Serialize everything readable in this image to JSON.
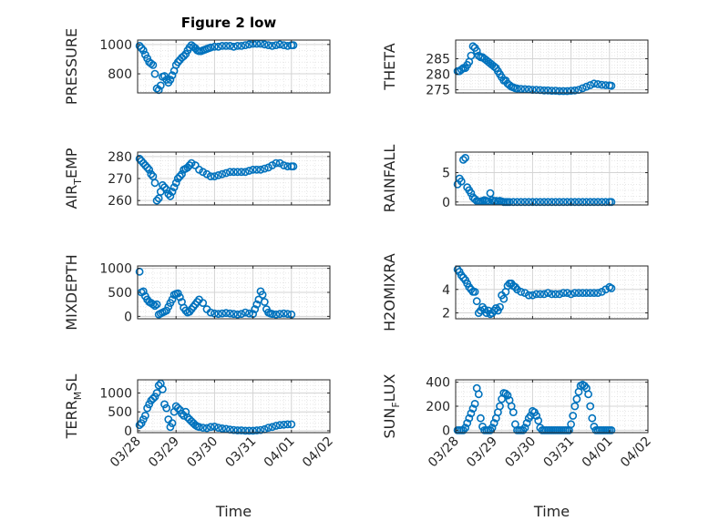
{
  "figure": {
    "title": "Figure 2 low"
  },
  "chart_data": [
    {
      "type": "scatter",
      "ylabel": "PRESSURE",
      "ylim": [
        670,
        1030
      ],
      "yticks": [
        800,
        1000
      ],
      "xlim": [
        0,
        5
      ],
      "xticklabels": [],
      "title": "Figure 2 low",
      "color": "#0072BD",
      "series": [
        {
          "x": [
            0.05,
            0.1,
            0.15,
            0.2,
            0.25,
            0.3,
            0.35,
            0.4,
            0.45,
            0.5,
            0.55,
            0.6,
            0.65,
            0.7,
            0.75,
            0.8,
            0.85,
            0.9,
            0.95,
            1.0,
            1.05,
            1.1,
            1.15,
            1.2,
            1.25,
            1.3,
            1.35,
            1.4,
            1.45,
            1.5,
            1.55,
            1.6,
            1.65,
            1.7,
            1.75,
            1.8,
            1.85,
            1.9,
            2.0,
            2.1,
            2.2,
            2.3,
            2.4,
            2.5,
            2.6,
            2.7,
            2.8,
            2.9,
            3.0,
            3.1,
            3.2,
            3.3,
            3.4,
            3.5,
            3.6,
            3.7,
            3.8,
            3.9,
            4.0,
            4.05
          ],
          "y": [
            990,
            975,
            960,
            930,
            905,
            880,
            870,
            860,
            800,
            700,
            690,
            720,
            780,
            785,
            760,
            740,
            760,
            790,
            820,
            860,
            880,
            895,
            910,
            920,
            935,
            960,
            980,
            995,
            985,
            975,
            960,
            955,
            955,
            960,
            965,
            970,
            975,
            980,
            985,
            985,
            990,
            990,
            990,
            985,
            990,
            990,
            995,
            1000,
            1005,
            1005,
            1005,
            1000,
            995,
            990,
            995,
            1000,
            995,
            990,
            995,
            995
          ]
        }
      ]
    },
    {
      "type": "scatter",
      "ylabel": "THETA",
      "ylim": [
        274,
        291
      ],
      "yticks": [
        275,
        280,
        285
      ],
      "xlim": [
        0,
        5
      ],
      "xticklabels": [],
      "color": "#0072BD",
      "series": [
        {
          "x": [
            0.05,
            0.1,
            0.15,
            0.2,
            0.25,
            0.3,
            0.35,
            0.4,
            0.45,
            0.5,
            0.55,
            0.6,
            0.65,
            0.7,
            0.75,
            0.8,
            0.85,
            0.9,
            0.95,
            1.0,
            1.05,
            1.1,
            1.15,
            1.2,
            1.25,
            1.3,
            1.35,
            1.4,
            1.45,
            1.5,
            1.55,
            1.6,
            1.7,
            1.8,
            1.9,
            2.0,
            2.1,
            2.2,
            2.3,
            2.4,
            2.5,
            2.6,
            2.7,
            2.8,
            2.9,
            3.0,
            3.1,
            3.2,
            3.3,
            3.4,
            3.5,
            3.6,
            3.7,
            3.8,
            3.9,
            4.0,
            4.05
          ],
          "y": [
            281,
            281,
            281.5,
            282,
            282,
            283,
            284,
            286,
            289,
            288.5,
            287.5,
            286,
            285.5,
            285.5,
            285,
            284.5,
            284,
            283.5,
            283,
            282.5,
            282,
            281,
            280,
            279,
            278,
            278,
            277,
            276.5,
            276,
            275.8,
            275.5,
            275.4,
            275.3,
            275.2,
            275.1,
            275,
            275,
            274.9,
            274.8,
            274.8,
            274.7,
            274.7,
            274.6,
            274.6,
            274.6,
            274.7,
            274.8,
            275,
            275.5,
            276,
            276.5,
            277,
            276.8,
            276.6,
            276.5,
            276.4,
            276.3
          ]
        }
      ]
    },
    {
      "type": "scatter",
      "ylabel": "AIR_TEMP",
      "ylim": [
        258,
        282
      ],
      "yticks": [
        260,
        270,
        280
      ],
      "xlim": [
        0,
        5
      ],
      "xticklabels": [],
      "color": "#0072BD",
      "series": [
        {
          "x": [
            0.05,
            0.1,
            0.15,
            0.2,
            0.25,
            0.3,
            0.35,
            0.4,
            0.45,
            0.5,
            0.55,
            0.6,
            0.65,
            0.7,
            0.75,
            0.8,
            0.85,
            0.9,
            0.95,
            1.0,
            1.05,
            1.1,
            1.15,
            1.2,
            1.25,
            1.3,
            1.35,
            1.4,
            1.5,
            1.6,
            1.7,
            1.8,
            1.9,
            2.0,
            2.1,
            2.2,
            2.3,
            2.4,
            2.5,
            2.6,
            2.7,
            2.8,
            2.9,
            3.0,
            3.1,
            3.2,
            3.3,
            3.4,
            3.5,
            3.6,
            3.7,
            3.8,
            3.9,
            4.0,
            4.05
          ],
          "y": [
            279,
            278,
            277,
            276,
            275,
            274,
            272,
            271,
            268,
            260,
            261,
            264,
            267,
            266,
            265,
            263,
            262,
            264,
            266,
            268,
            270,
            271,
            272,
            274,
            274.5,
            275,
            276,
            277,
            276,
            274,
            273,
            272,
            271,
            271,
            271.5,
            272,
            272.5,
            273,
            273,
            273,
            273,
            273,
            273.5,
            274,
            274,
            274,
            274.5,
            275,
            276,
            277,
            277,
            276,
            275.5,
            275.5,
            275.5
          ]
        }
      ]
    },
    {
      "type": "scatter",
      "ylabel": "RAINFALL",
      "ylim": [
        -0.5,
        8.5
      ],
      "yticks": [
        0,
        5
      ],
      "xlim": [
        0,
        5
      ],
      "xticklabels": [],
      "color": "#0072BD",
      "series": [
        {
          "x": [
            0.05,
            0.1,
            0.15,
            0.2,
            0.25,
            0.3,
            0.35,
            0.4,
            0.45,
            0.5,
            0.55,
            0.6,
            0.65,
            0.7,
            0.75,
            0.8,
            0.85,
            0.9,
            0.95,
            1.0,
            1.05,
            1.1,
            1.15,
            1.2,
            1.25,
            1.3,
            1.35,
            1.4,
            1.5,
            1.6,
            1.7,
            1.8,
            1.9,
            2.0,
            2.1,
            2.2,
            2.3,
            2.4,
            2.5,
            2.6,
            2.7,
            2.8,
            2.9,
            3.0,
            3.1,
            3.2,
            3.3,
            3.4,
            3.5,
            3.6,
            3.7,
            3.8,
            3.9,
            4.0,
            4.05
          ],
          "y": [
            3,
            4,
            3.5,
            7.2,
            7.5,
            2.5,
            2,
            1.5,
            0.8,
            0.5,
            0.2,
            0.1,
            0.1,
            0.2,
            0.3,
            0.2,
            0.1,
            1.5,
            0.3,
            0.1,
            0.2,
            0.1,
            0.2,
            0.1,
            0,
            0,
            0,
            0,
            0,
            0,
            0,
            0,
            0,
            0,
            0,
            0,
            0,
            0,
            0,
            0,
            0,
            0,
            0,
            0,
            0,
            0,
            0,
            0,
            0,
            0,
            0,
            0,
            0,
            0,
            0
          ]
        }
      ]
    },
    {
      "type": "scatter",
      "ylabel": "MIXDEPTH",
      "ylim": [
        -50,
        1050
      ],
      "yticks": [
        0,
        500,
        1000
      ],
      "xlim": [
        0,
        5
      ],
      "xticklabels": [],
      "color": "#0072BD",
      "series": [
        {
          "x": [
            0.05,
            0.1,
            0.15,
            0.2,
            0.25,
            0.3,
            0.35,
            0.4,
            0.45,
            0.5,
            0.55,
            0.6,
            0.65,
            0.7,
            0.75,
            0.8,
            0.85,
            0.9,
            0.95,
            1.0,
            1.05,
            1.1,
            1.15,
            1.2,
            1.25,
            1.3,
            1.35,
            1.4,
            1.45,
            1.5,
            1.55,
            1.6,
            1.7,
            1.8,
            1.9,
            2.0,
            2.1,
            2.2,
            2.3,
            2.4,
            2.5,
            2.6,
            2.7,
            2.8,
            2.9,
            3.0,
            3.05,
            3.1,
            3.15,
            3.2,
            3.25,
            3.3,
            3.35,
            3.4,
            3.45,
            3.5,
            3.6,
            3.7,
            3.8,
            3.9,
            4.0
          ],
          "y": [
            930,
            500,
            520,
            420,
            350,
            300,
            280,
            250,
            220,
            250,
            40,
            60,
            80,
            100,
            120,
            200,
            280,
            350,
            450,
            470,
            480,
            400,
            300,
            180,
            120,
            80,
            100,
            150,
            200,
            250,
            300,
            350,
            280,
            150,
            80,
            60,
            50,
            60,
            70,
            60,
            50,
            40,
            50,
            80,
            60,
            50,
            150,
            250,
            350,
            520,
            450,
            300,
            150,
            80,
            60,
            50,
            40,
            50,
            60,
            50,
            40
          ]
        }
      ]
    },
    {
      "type": "scatter",
      "ylabel": "H2OMIXRA",
      "ylim": [
        1.5,
        6
      ],
      "yticks": [
        2,
        4
      ],
      "xlim": [
        0,
        5
      ],
      "xticklabels": [],
      "color": "#0072BD",
      "series": [
        {
          "x": [
            0.05,
            0.1,
            0.15,
            0.2,
            0.25,
            0.3,
            0.35,
            0.4,
            0.45,
            0.5,
            0.55,
            0.6,
            0.65,
            0.7,
            0.75,
            0.8,
            0.85,
            0.9,
            0.95,
            1.0,
            1.05,
            1.1,
            1.15,
            1.2,
            1.25,
            1.3,
            1.35,
            1.4,
            1.45,
            1.5,
            1.55,
            1.6,
            1.7,
            1.8,
            1.9,
            2.0,
            2.1,
            2.2,
            2.3,
            2.4,
            2.5,
            2.6,
            2.7,
            2.8,
            2.9,
            3.0,
            3.1,
            3.2,
            3.3,
            3.4,
            3.5,
            3.6,
            3.7,
            3.8,
            3.9,
            4.0,
            4.05
          ],
          "y": [
            5.7,
            5.5,
            5.2,
            5,
            4.8,
            4.5,
            4.2,
            4,
            3.8,
            3.8,
            3,
            2,
            2.2,
            2.5,
            2.3,
            2,
            2.2,
            1.9,
            2,
            2.2,
            2.4,
            2.2,
            2.5,
            3.5,
            3.2,
            3.8,
            4.3,
            4.5,
            4.5,
            4.3,
            4.2,
            4,
            3.8,
            3.7,
            3.5,
            3.5,
            3.6,
            3.6,
            3.6,
            3.7,
            3.6,
            3.6,
            3.6,
            3.7,
            3.7,
            3.6,
            3.7,
            3.7,
            3.7,
            3.7,
            3.7,
            3.7,
            3.7,
            3.8,
            4,
            4.2,
            4.1
          ]
        }
      ]
    },
    {
      "type": "scatter",
      "ylabel": "TERR_MSL",
      "ylim": [
        -50,
        1350
      ],
      "yticks": [
        0,
        500,
        1000
      ],
      "xlim": [
        0,
        5
      ],
      "xticklabels": [
        "03/28",
        "03/29",
        "03/30",
        "03/31",
        "04/01",
        "04/02"
      ],
      "xlabel": "Time",
      "color": "#0072BD",
      "series": [
        {
          "x": [
            0.05,
            0.1,
            0.15,
            0.2,
            0.25,
            0.3,
            0.35,
            0.4,
            0.45,
            0.5,
            0.55,
            0.6,
            0.65,
            0.7,
            0.75,
            0.8,
            0.85,
            0.9,
            0.95,
            1.0,
            1.05,
            1.1,
            1.15,
            1.2,
            1.25,
            1.3,
            1.35,
            1.4,
            1.45,
            1.5,
            1.55,
            1.6,
            1.7,
            1.8,
            1.9,
            2.0,
            2.1,
            2.2,
            2.3,
            2.4,
            2.5,
            2.6,
            2.7,
            2.8,
            2.9,
            3.0,
            3.1,
            3.2,
            3.3,
            3.4,
            3.5,
            3.6,
            3.7,
            3.8,
            3.9,
            4.0
          ],
          "y": [
            150,
            200,
            300,
            400,
            600,
            700,
            800,
            850,
            900,
            1000,
            1200,
            1250,
            1100,
            700,
            600,
            300,
            100,
            200,
            500,
            650,
            600,
            550,
            450,
            400,
            500,
            350,
            300,
            250,
            200,
            150,
            120,
            100,
            80,
            70,
            100,
            110,
            80,
            60,
            50,
            30,
            20,
            10,
            10,
            0,
            0,
            0,
            10,
            20,
            40,
            80,
            100,
            130,
            150,
            160,
            170,
            170
          ]
        }
      ]
    },
    {
      "type": "scatter",
      "ylabel": "SUN_FLUX",
      "ylim": [
        -20,
        420
      ],
      "yticks": [
        0,
        200,
        400
      ],
      "xlim": [
        0,
        5
      ],
      "xticklabels": [
        "03/28",
        "03/29",
        "03/30",
        "03/31",
        "04/01",
        "04/02"
      ],
      "xlabel": "Time",
      "color": "#0072BD",
      "series": [
        {
          "x": [
            0.05,
            0.1,
            0.15,
            0.2,
            0.25,
            0.3,
            0.35,
            0.4,
            0.45,
            0.5,
            0.55,
            0.6,
            0.65,
            0.7,
            0.75,
            0.8,
            0.85,
            0.9,
            0.95,
            1.0,
            1.05,
            1.1,
            1.15,
            1.2,
            1.25,
            1.3,
            1.35,
            1.4,
            1.45,
            1.5,
            1.55,
            1.6,
            1.65,
            1.7,
            1.75,
            1.8,
            1.85,
            1.9,
            1.95,
            2.0,
            2.05,
            2.1,
            2.15,
            2.2,
            2.25,
            2.3,
            2.35,
            2.4,
            2.45,
            2.5,
            2.55,
            2.6,
            2.65,
            2.7,
            2.75,
            2.8,
            2.85,
            2.9,
            2.95,
            3.0,
            3.05,
            3.1,
            3.15,
            3.2,
            3.25,
            3.3,
            3.35,
            3.4,
            3.45,
            3.5,
            3.55,
            3.6,
            3.65,
            3.7,
            3.75,
            3.8,
            3.85,
            3.9,
            3.95,
            4.0,
            4.05
          ],
          "y": [
            0,
            0,
            0,
            0,
            20,
            60,
            100,
            140,
            180,
            220,
            350,
            300,
            100,
            30,
            0,
            0,
            0,
            0,
            20,
            60,
            100,
            150,
            200,
            260,
            310,
            305,
            290,
            250,
            200,
            150,
            50,
            0,
            0,
            0,
            0,
            20,
            60,
            100,
            120,
            160,
            150,
            120,
            80,
            20,
            0,
            0,
            0,
            0,
            0,
            0,
            0,
            0,
            0,
            0,
            0,
            0,
            0,
            0,
            0,
            50,
            120,
            200,
            260,
            320,
            370,
            380,
            370,
            350,
            300,
            200,
            100,
            30,
            0,
            0,
            0,
            0,
            0,
            0,
            0,
            0,
            0
          ]
        }
      ]
    }
  ]
}
